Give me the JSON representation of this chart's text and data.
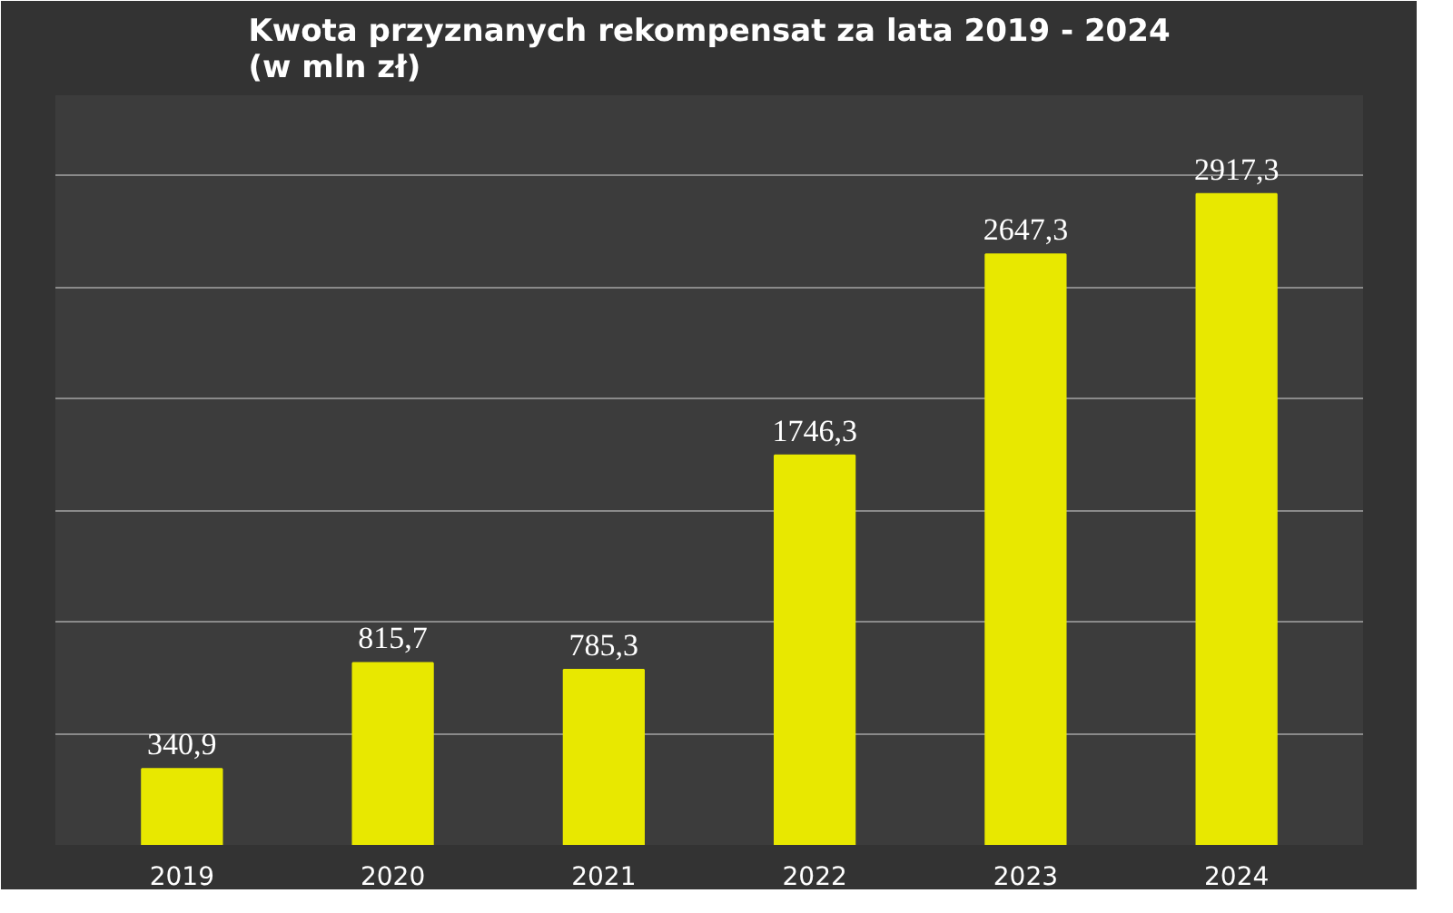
{
  "chart_data": {
    "type": "bar",
    "title": "Kwota przyznanych rekompensat za lata 2019 - 2024\n(w mln zł)",
    "categories": [
      "2019",
      "2020",
      "2021",
      "2022",
      "2023",
      "2024"
    ],
    "values": [
      340.9,
      815.7,
      785.3,
      1746.3,
      2647.3,
      2917.3
    ],
    "value_labels": [
      "340,9",
      "815,7",
      "785,3",
      "1746,3",
      "2647,3",
      "2917,3"
    ],
    "color": "#e8e800",
    "ylim": [
      0,
      3000
    ],
    "yticks": [
      {
        "value": 0,
        "label": null
      },
      {
        "value": 500,
        "label": null
      },
      {
        "value": 1000,
        "label": null
      },
      {
        "value": 1500,
        "label": null
      },
      {
        "value": 2000,
        "label": null
      },
      {
        "value": 2500,
        "label": null
      },
      {
        "value": 3000,
        "label": null
      }
    ],
    "grid": "y",
    "tick_labels": "x"
  }
}
